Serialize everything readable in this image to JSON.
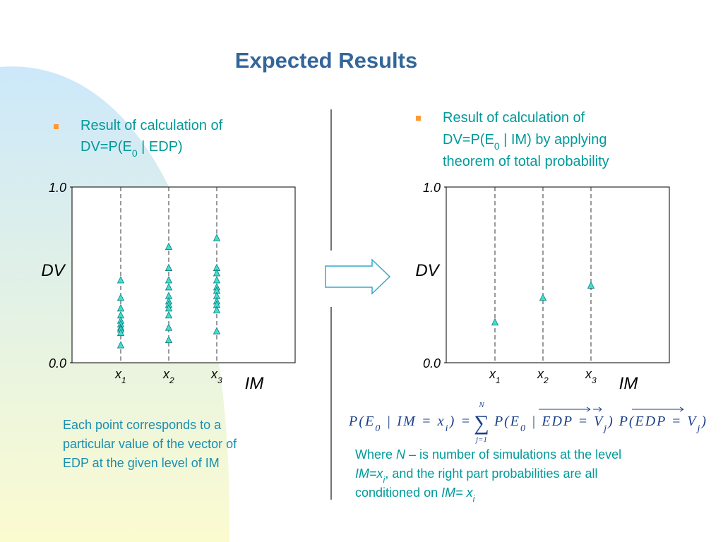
{
  "title": "Expected Results",
  "left_bullet": [
    [
      {
        "t": "Result of calculation of"
      }
    ],
    [
      {
        "t": "DV=P(E"
      },
      {
        "t": "0",
        "sub": true
      },
      {
        "t": " | EDP)"
      }
    ]
  ],
  "right_bullet": [
    [
      {
        "t": "Result of calculation of"
      }
    ],
    [
      {
        "t": "DV=P(E"
      },
      {
        "t": "0",
        "sub": true
      },
      {
        "t": " | IM) by applying"
      }
    ],
    [
      {
        "t": "theorem of total probability"
      }
    ]
  ],
  "note": [
    "Each point corresponds to a",
    "particular value of the vector of",
    "EDP at the given level of IM"
  ],
  "formula": {
    "left": [
      {
        "t": "P(E"
      },
      {
        "t": "0",
        "sub": true
      },
      {
        "t": " | IM = x"
      },
      {
        "t": "i",
        "sub": true
      },
      {
        "t": ") ="
      }
    ],
    "sum": "∑",
    "sum_top": "N",
    "sum_bottom": "j=1",
    "right": [
      {
        "t": "P(E"
      },
      {
        "t": "0",
        "sub": true
      },
      {
        "t": " | EDP = V"
      },
      {
        "t": "j",
        "sub": true
      },
      {
        "t": ") P(EDP = V"
      },
      {
        "t": "j",
        "sub": true
      },
      {
        "t": ")"
      }
    ]
  },
  "where": [
    [
      {
        "t": "Where "
      },
      {
        "t": "N",
        "i": true
      },
      {
        "t": " – is number of simulations at the level"
      }
    ],
    [
      {
        "t": "IM=x",
        "i": true
      },
      {
        "t": "i",
        "i": true,
        "sub": true
      },
      {
        "t": ", and the right part probabilities are all"
      }
    ],
    [
      {
        "t": "conditioned on "
      },
      {
        "t": "IM= x",
        "i": true
      },
      {
        "t": "i",
        "i": true,
        "sub": true
      }
    ]
  ],
  "chart_data": [
    {
      "type": "scatter",
      "ylabel": "DV",
      "xlabel": "IM",
      "categories": [
        {
          "label": "x",
          "sub": "1"
        },
        {
          "label": "x",
          "sub": "2"
        },
        {
          "label": "x",
          "sub": "3"
        }
      ],
      "ylim": [
        0,
        1
      ],
      "yticks": [
        {
          "value": 0,
          "label": "0.0"
        },
        {
          "value": 1,
          "label": "1.0"
        }
      ],
      "series": [
        {
          "color": "#40e0d0",
          "values": [
            [
              0.47,
              0.37,
              0.31,
              0.27,
              0.24,
              0.22,
              0.2,
              0.19,
              0.17,
              0.1
            ],
            [
              0.66,
              0.54,
              0.47,
              0.43,
              0.38,
              0.35,
              0.33,
              0.31,
              0.27,
              0.2,
              0.13
            ],
            [
              0.71,
              0.54,
              0.51,
              0.47,
              0.43,
              0.41,
              0.38,
              0.35,
              0.33,
              0.3,
              0.18
            ]
          ]
        }
      ]
    },
    {
      "type": "scatter",
      "ylabel": "DV",
      "xlabel": "IM",
      "categories": [
        {
          "label": "x",
          "sub": "1"
        },
        {
          "label": "x",
          "sub": "2"
        },
        {
          "label": "x",
          "sub": "3"
        }
      ],
      "ylim": [
        0,
        1
      ],
      "yticks": [
        {
          "value": 0,
          "label": "0.0"
        },
        {
          "value": 1,
          "label": "1.0"
        }
      ],
      "series": [
        {
          "color": "#40e0d0",
          "values": [
            [
              0.23
            ],
            [
              0.37
            ],
            [
              0.44
            ]
          ]
        }
      ]
    }
  ]
}
